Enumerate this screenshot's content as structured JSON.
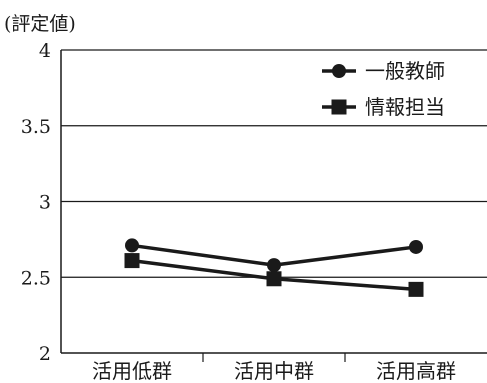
{
  "chart_data": {
    "type": "line",
    "ylabel": "(評定値)",
    "xlabel": "",
    "categories": [
      "活用低群",
      "活用中群",
      "活用高群"
    ],
    "ylim": [
      2,
      4
    ],
    "yticks": [
      "2",
      "2.5",
      "3",
      "3.5",
      "4"
    ],
    "grid": true,
    "legend_position": "top-right",
    "series": [
      {
        "name": "一般教師",
        "marker": "circle",
        "values": [
          2.71,
          2.58,
          2.7
        ]
      },
      {
        "name": "情報担当",
        "marker": "square",
        "values": [
          2.61,
          2.49,
          2.42
        ]
      }
    ],
    "colors": {
      "line": "#1a1a1a",
      "grid": "#1a1a1a",
      "background": "#ffffff"
    }
  }
}
